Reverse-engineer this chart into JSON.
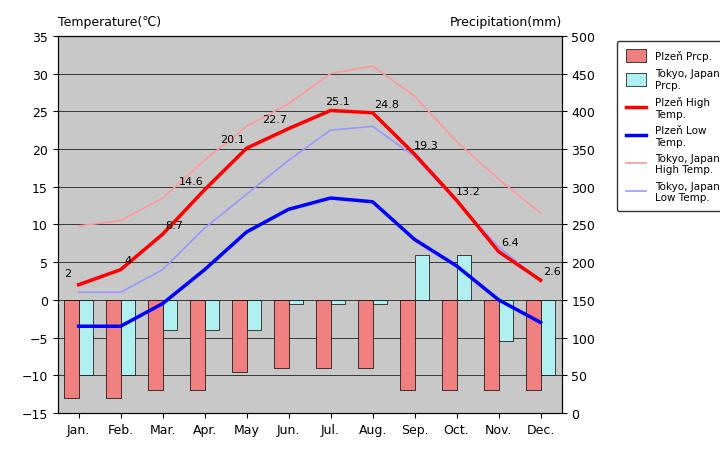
{
  "months": [
    "Jan.",
    "Feb.",
    "Mar.",
    "Apr.",
    "May",
    "Jun.",
    "Jul.",
    "Aug.",
    "Sep.",
    "Oct.",
    "Nov.",
    "Dec."
  ],
  "plzen_high": [
    2,
    4,
    8.7,
    14.6,
    20.1,
    22.7,
    25.1,
    24.8,
    19.3,
    13.2,
    6.4,
    2.6
  ],
  "plzen_low": [
    -3.5,
    -3.5,
    -0.5,
    4,
    9,
    12,
    13.5,
    13,
    8,
    4.5,
    0,
    -3
  ],
  "tokyo_high": [
    9.8,
    10.5,
    13.5,
    18.5,
    23,
    26,
    30,
    31,
    27,
    21,
    16,
    11.5
  ],
  "tokyo_low": [
    1,
    1,
    4,
    9.5,
    14,
    18.5,
    22.5,
    23,
    19,
    13,
    7,
    2.5
  ],
  "plzen_prcp_bar": [
    -13,
    -13,
    -12,
    -12,
    -9.5,
    -9,
    -9,
    -9,
    -12,
    -12,
    -12,
    -12
  ],
  "tokyo_prcp_bar": [
    -10,
    -10,
    -4,
    -4,
    -4,
    -0.5,
    -0.5,
    -0.5,
    6,
    6,
    -5.5,
    -10
  ],
  "colors": {
    "plzen_high": "#ff0000",
    "plzen_low": "#0000ff",
    "tokyo_high": "#ff9999",
    "tokyo_low": "#9999ff",
    "plzen_prcp": "#f08080",
    "tokyo_prcp": "#b0f0f0",
    "plot_bg": "#c8c8c8"
  },
  "ylim_temp": [
    -15,
    35
  ],
  "ylim_prcp": [
    0,
    500
  ],
  "ylabel_left": "Temperature(℃)",
  "ylabel_right": "Precipitation(mm)",
  "yticks_temp": [
    -15,
    -10,
    -5,
    0,
    5,
    10,
    15,
    20,
    25,
    30,
    35
  ],
  "yticks_prcp": [
    0,
    50,
    100,
    150,
    200,
    250,
    300,
    350,
    400,
    450,
    500
  ],
  "plzen_high_labels": [
    [
      0,
      "2"
    ],
    [
      1,
      "4"
    ],
    [
      2,
      "8.7"
    ],
    [
      3,
      "14.6"
    ],
    [
      4,
      "20.1"
    ],
    [
      5,
      "22.7"
    ],
    [
      6,
      "25.1"
    ],
    [
      7,
      "24.8"
    ],
    [
      8,
      "19.3"
    ],
    [
      9,
      "13.2"
    ],
    [
      10,
      "6.4"
    ],
    [
      11,
      "2.6"
    ]
  ],
  "legend_labels": [
    "Plzeň Prcp.",
    "Tokyo, Japan\nPrcp.",
    "Plzeň High\nTemp.",
    "Plzeň Low\nTemp.",
    "Tokyo, Japan\nHigh Temp.",
    "Tokyo, Japan\nLow Temp."
  ],
  "bar_width": 0.35,
  "figsize": [
    7.2,
    4.6
  ],
  "dpi": 100
}
